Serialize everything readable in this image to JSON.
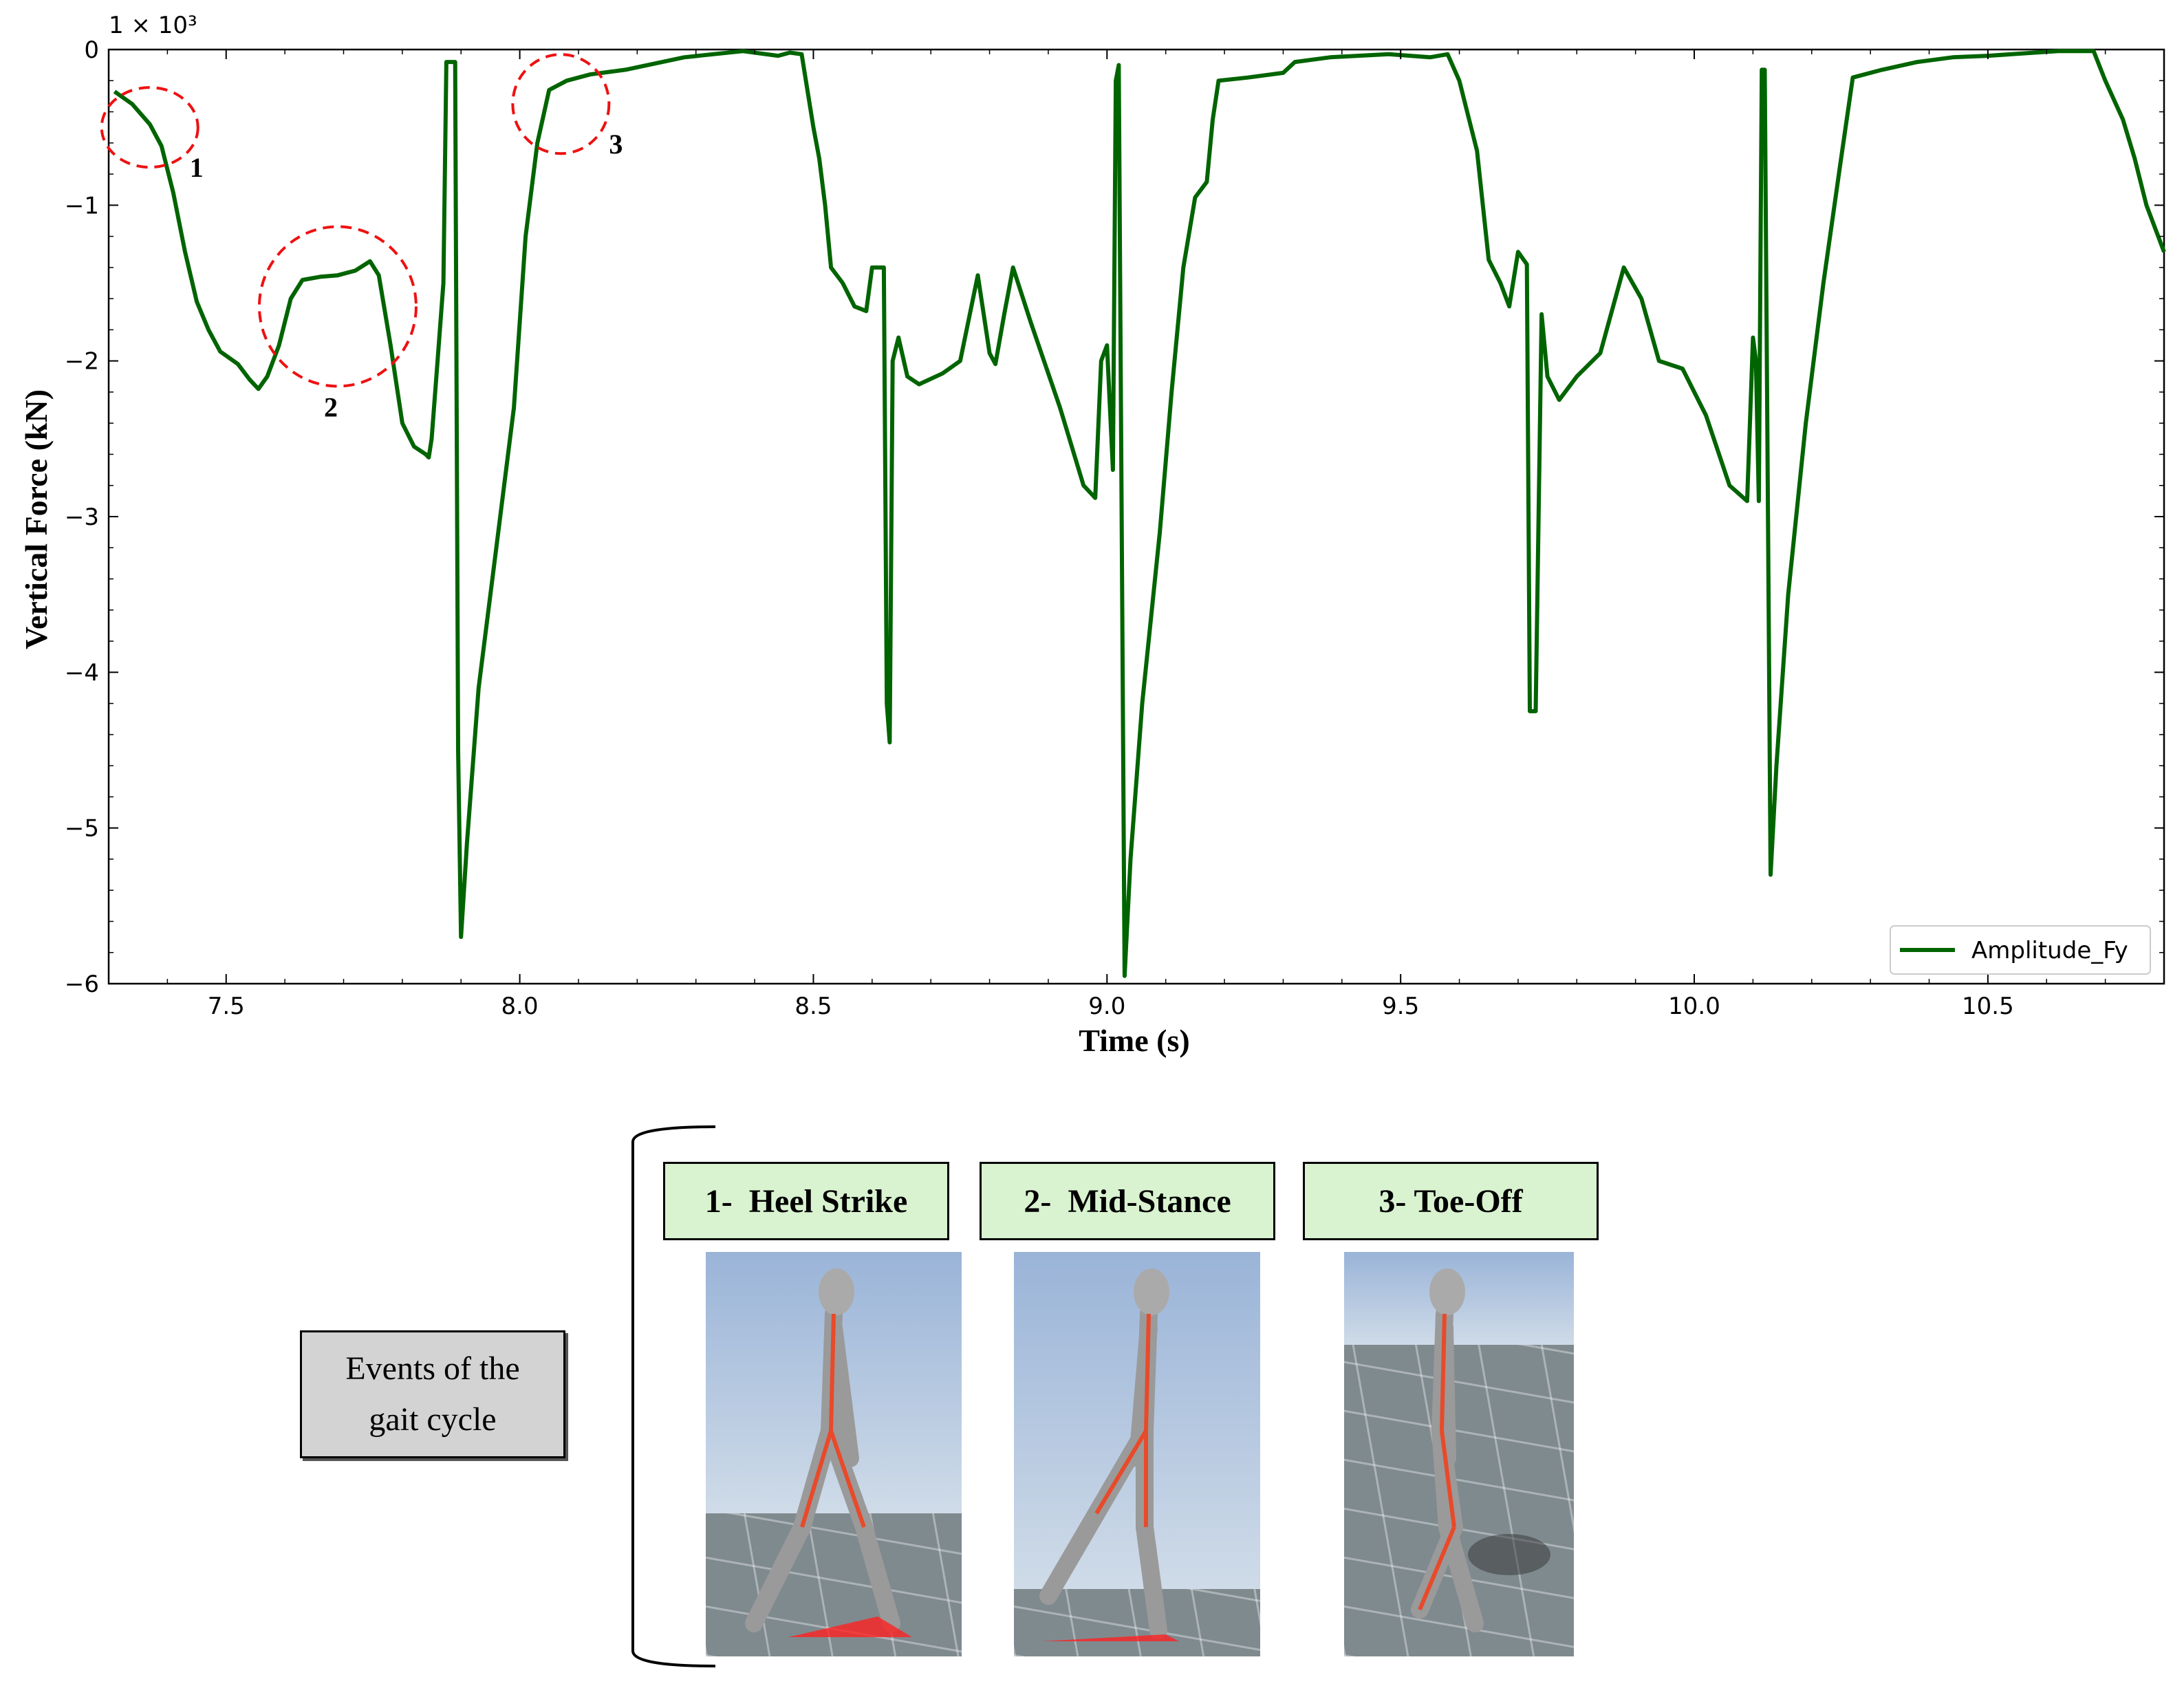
{
  "chart_data": {
    "type": "line",
    "title": "",
    "xlabel": "Time (s)",
    "ylabel": "Vertical Force (kN)",
    "y_multiplier": "1 × 10³",
    "xlim": [
      7.3,
      10.8
    ],
    "ylim": [
      -6,
      0
    ],
    "x_ticks": [
      "7.5",
      "8.0",
      "8.5",
      "9.0",
      "9.5",
      "10.0",
      "10.5"
    ],
    "y_ticks": [
      "0",
      "−1",
      "−2",
      "−3",
      "−4",
      "−5",
      "−6"
    ],
    "x_tick_values": [
      7.5,
      8.0,
      8.5,
      9.0,
      9.5,
      10.0,
      10.5
    ],
    "y_tick_values": [
      0,
      -1,
      -2,
      -3,
      -4,
      -5,
      -6
    ],
    "legend": {
      "placement": "bottom-right",
      "entries": [
        "Amplitude_Fy"
      ]
    },
    "grid": false,
    "series": [
      {
        "name": "Amplitude_Fy",
        "color": "#006400",
        "points": [
          [
            7.31,
            -0.27
          ],
          [
            7.34,
            -0.35
          ],
          [
            7.37,
            -0.48
          ],
          [
            7.39,
            -0.62
          ],
          [
            7.41,
            -0.92
          ],
          [
            7.43,
            -1.3
          ],
          [
            7.45,
            -1.62
          ],
          [
            7.47,
            -1.8
          ],
          [
            7.49,
            -1.94
          ],
          [
            7.52,
            -2.02
          ],
          [
            7.54,
            -2.12
          ],
          [
            7.555,
            -2.18
          ],
          [
            7.57,
            -2.1
          ],
          [
            7.59,
            -1.9
          ],
          [
            7.61,
            -1.6
          ],
          [
            7.63,
            -1.48
          ],
          [
            7.66,
            -1.46
          ],
          [
            7.69,
            -1.45
          ],
          [
            7.72,
            -1.42
          ],
          [
            7.745,
            -1.36
          ],
          [
            7.76,
            -1.45
          ],
          [
            7.78,
            -1.9
          ],
          [
            7.8,
            -2.4
          ],
          [
            7.82,
            -2.55
          ],
          [
            7.84,
            -2.6
          ],
          [
            7.845,
            -2.62
          ],
          [
            7.85,
            -2.5
          ],
          [
            7.86,
            -2.0
          ],
          [
            7.87,
            -1.5
          ],
          [
            7.875,
            -0.08
          ],
          [
            7.89,
            -0.08
          ],
          [
            7.895,
            -4.5
          ],
          [
            7.9,
            -5.7
          ],
          [
            7.91,
            -5.1
          ],
          [
            7.93,
            -4.1
          ],
          [
            7.96,
            -3.2
          ],
          [
            7.99,
            -2.3
          ],
          [
            8.01,
            -1.2
          ],
          [
            8.03,
            -0.6
          ],
          [
            8.05,
            -0.26
          ],
          [
            8.08,
            -0.2
          ],
          [
            8.12,
            -0.16
          ],
          [
            8.18,
            -0.13
          ],
          [
            8.28,
            -0.05
          ],
          [
            8.38,
            -0.01
          ],
          [
            8.44,
            -0.04
          ],
          [
            8.46,
            -0.02
          ],
          [
            8.48,
            -0.03
          ],
          [
            8.5,
            -0.5
          ],
          [
            8.51,
            -0.7
          ],
          [
            8.52,
            -1.0
          ],
          [
            8.53,
            -1.4
          ],
          [
            8.55,
            -1.5
          ],
          [
            8.57,
            -1.65
          ],
          [
            8.59,
            -1.68
          ],
          [
            8.6,
            -1.4
          ],
          [
            8.62,
            -1.4
          ],
          [
            8.625,
            -4.2
          ],
          [
            8.63,
            -4.45
          ],
          [
            8.635,
            -2.0
          ],
          [
            8.645,
            -1.85
          ],
          [
            8.66,
            -2.1
          ],
          [
            8.68,
            -2.15
          ],
          [
            8.72,
            -2.08
          ],
          [
            8.75,
            -2.0
          ],
          [
            8.78,
            -1.45
          ],
          [
            8.8,
            -1.95
          ],
          [
            8.81,
            -2.02
          ],
          [
            8.825,
            -1.7
          ],
          [
            8.84,
            -1.4
          ],
          [
            8.87,
            -1.75
          ],
          [
            8.92,
            -2.3
          ],
          [
            8.96,
            -2.8
          ],
          [
            8.98,
            -2.88
          ],
          [
            8.99,
            -2.0
          ],
          [
            9.0,
            -1.9
          ],
          [
            9.01,
            -2.7
          ],
          [
            9.015,
            -0.2
          ],
          [
            9.02,
            -0.1
          ],
          [
            9.03,
            -5.95
          ],
          [
            9.04,
            -5.2
          ],
          [
            9.06,
            -4.2
          ],
          [
            9.09,
            -3.1
          ],
          [
            9.11,
            -2.2
          ],
          [
            9.13,
            -1.4
          ],
          [
            9.15,
            -0.95
          ],
          [
            9.17,
            -0.85
          ],
          [
            9.18,
            -0.45
          ],
          [
            9.19,
            -0.2
          ],
          [
            9.24,
            -0.18
          ],
          [
            9.3,
            -0.15
          ],
          [
            9.32,
            -0.08
          ],
          [
            9.38,
            -0.05
          ],
          [
            9.48,
            -0.03
          ],
          [
            9.55,
            -0.05
          ],
          [
            9.58,
            -0.03
          ],
          [
            9.6,
            -0.2
          ],
          [
            9.62,
            -0.5
          ],
          [
            9.63,
            -0.65
          ],
          [
            9.64,
            -1.0
          ],
          [
            9.65,
            -1.35
          ],
          [
            9.67,
            -1.5
          ],
          [
            9.685,
            -1.65
          ],
          [
            9.7,
            -1.3
          ],
          [
            9.715,
            -1.38
          ],
          [
            9.72,
            -4.25
          ],
          [
            9.73,
            -4.25
          ],
          [
            9.74,
            -1.7
          ],
          [
            9.75,
            -2.1
          ],
          [
            9.77,
            -2.25
          ],
          [
            9.8,
            -2.1
          ],
          [
            9.84,
            -1.95
          ],
          [
            9.88,
            -1.4
          ],
          [
            9.91,
            -1.6
          ],
          [
            9.94,
            -2.0
          ],
          [
            9.98,
            -2.05
          ],
          [
            10.02,
            -2.35
          ],
          [
            10.06,
            -2.8
          ],
          [
            10.09,
            -2.9
          ],
          [
            10.1,
            -1.85
          ],
          [
            10.105,
            -2.0
          ],
          [
            10.11,
            -2.9
          ],
          [
            10.115,
            -0.13
          ],
          [
            10.12,
            -0.13
          ],
          [
            10.13,
            -5.3
          ],
          [
            10.14,
            -4.6
          ],
          [
            10.16,
            -3.5
          ],
          [
            10.19,
            -2.4
          ],
          [
            10.22,
            -1.5
          ],
          [
            10.25,
            -0.7
          ],
          [
            10.27,
            -0.18
          ],
          [
            10.32,
            -0.13
          ],
          [
            10.38,
            -0.08
          ],
          [
            10.44,
            -0.05
          ],
          [
            10.5,
            -0.04
          ],
          [
            10.58,
            -0.02
          ],
          [
            10.62,
            -0.01
          ],
          [
            10.68,
            -0.01
          ],
          [
            10.7,
            -0.2
          ],
          [
            10.73,
            -0.45
          ],
          [
            10.75,
            -0.7
          ],
          [
            10.77,
            -1.0
          ],
          [
            10.79,
            -1.2
          ],
          [
            10.8,
            -1.3
          ]
        ]
      }
    ],
    "annotations": [
      {
        "label": "1",
        "x": 7.37,
        "y": -0.5
      },
      {
        "label": "2",
        "x": 7.69,
        "y": -1.65
      },
      {
        "label": "3",
        "x": 8.07,
        "y": -0.35
      }
    ]
  },
  "events": {
    "group_label": "Events of the\ngait cycle",
    "items": [
      {
        "label": "1-  Heel Strike"
      },
      {
        "label": "2-  Mid-Stance"
      },
      {
        "label": "3- Toe-Off"
      }
    ]
  }
}
